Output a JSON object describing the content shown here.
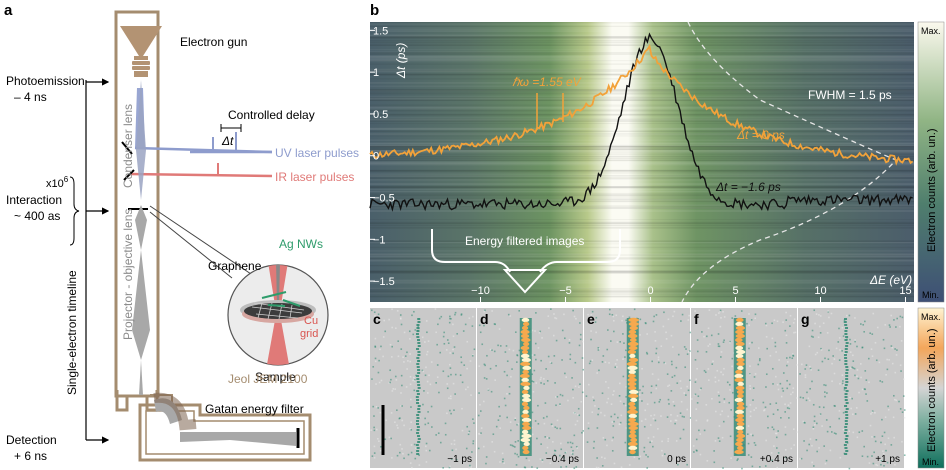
{
  "panel_a": {
    "letter": "a",
    "labels": {
      "electron_gun": "Electron gun",
      "photoemission": "Photoemission",
      "photoemission_time": "– 4 ns",
      "controlled_delay": "Controlled delay",
      "delta_t": "Δt",
      "condenser_lens": "Condenser lens",
      "uv_pulses": "UV laser pulses",
      "ir_pulses": "IR laser pulses",
      "repetitions": "x10",
      "repetitions_exp": "6",
      "interaction": "Interaction",
      "interaction_time": "~ 400 as",
      "projector_lens": "Projector - objective lens",
      "graphene": "Graphene",
      "ag_nws": "Ag NWs",
      "cu": "Cu",
      "grid": "grid",
      "sample": "Sample",
      "timeline": "Single-electron timeline",
      "microscope": "Jeol JEM 2100",
      "energy_filter": "Gatan energy filter",
      "detection": "Detection",
      "detection_time": "+ 6 ns"
    },
    "colors": {
      "column": "#a48c6f",
      "uv": "#8e9ccd",
      "ir": "#e07a78",
      "beam": "#a8a8a8"
    }
  },
  "panel_b": {
    "letter": "b",
    "y_tick_labels": [
      "1.5",
      "1",
      "0.5",
      "0",
      "−0.5",
      "−1",
      "−1.5"
    ],
    "y_ticks": [
      1.5,
      1,
      0.5,
      0,
      -0.5,
      -1,
      -1.5
    ],
    "x_tick_labels": [
      "−10",
      "−5",
      "0",
      "5",
      "10",
      "15"
    ],
    "x_ticks": [
      -10,
      -5,
      0,
      5,
      10,
      15
    ],
    "ylabel": "Δt (ps)",
    "xlabel": "ΔE (eV)",
    "photon": "ℏω =1.55 eV",
    "fwhm": "FWHM = 1.5 ps",
    "dt0": "Δt = 0 ps",
    "dtm": "Δt = −1.6 ps",
    "filtered": "Energy filtered images",
    "colorbar_title": "Electron counts (arb. un.)",
    "cb_max": "Max.",
    "cb_min": "Min.",
    "colors": {
      "orange": "#f2a23a",
      "black": "#111111",
      "bg": "#5b7a6a"
    }
  },
  "images": [
    {
      "letter": "c",
      "label": "−1 ps"
    },
    {
      "letter": "d",
      "label": "−0.4 ps"
    },
    {
      "letter": "e",
      "label": "0 ps"
    },
    {
      "letter": "f",
      "label": "+0.4 ps"
    },
    {
      "letter": "g",
      "label": "+1 ps"
    }
  ],
  "colorbar2": {
    "title": "Electron counts (arb. un.)",
    "max": "Max.",
    "min": "Min."
  }
}
